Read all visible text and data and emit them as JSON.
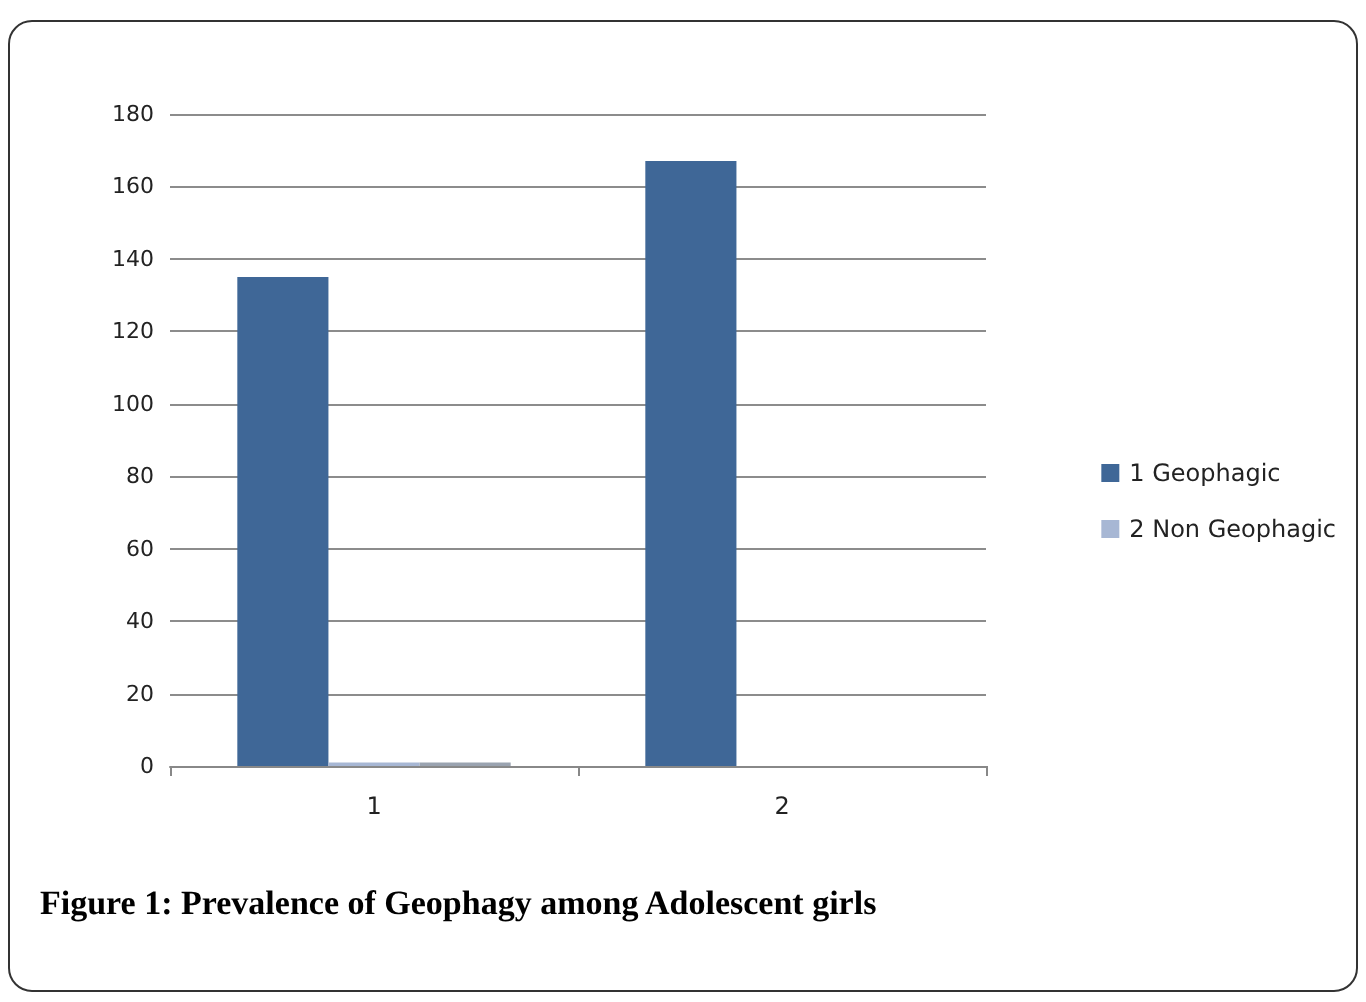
{
  "chart_data": {
    "type": "bar",
    "title": "Figure 1: Prevalence of Geophagy among Adolescent girls",
    "categories": [
      "1",
      "2"
    ],
    "series": [
      {
        "name": "1 Geophagic",
        "color": "#3f6797",
        "values": [
          135,
          167
        ]
      },
      {
        "name": "2 Non Geophagic",
        "color": "#a7b7d4",
        "values": [
          1,
          0
        ]
      },
      {
        "color": "#9aa3b0",
        "values": [
          1,
          0
        ]
      }
    ],
    "ylim": [
      0,
      180
    ],
    "yticks": [
      0,
      20,
      40,
      60,
      80,
      100,
      120,
      140,
      160,
      180
    ],
    "grid": "y",
    "legend": "right"
  }
}
